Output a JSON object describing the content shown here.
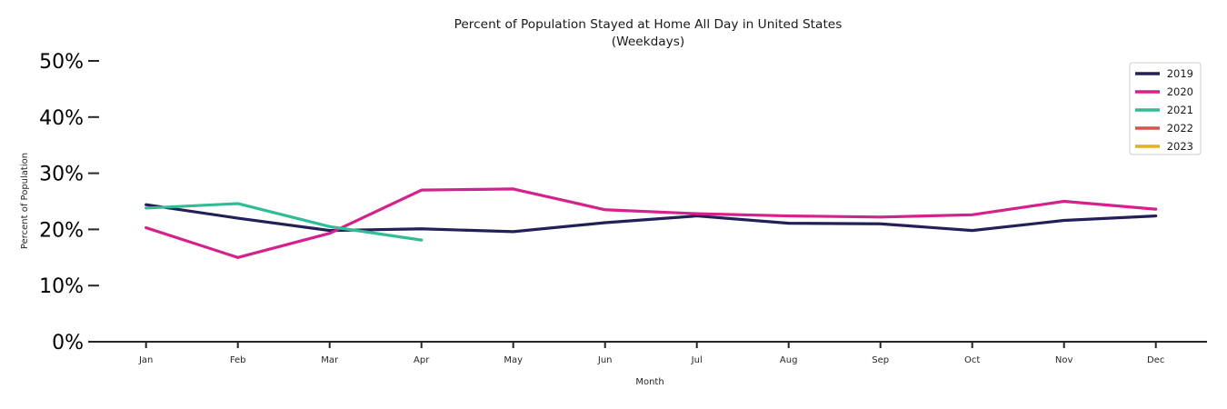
{
  "title": {
    "line1": "Percent of Population Stayed at Home All Day in United States",
    "line2": "(Weekdays)"
  },
  "chart_data": {
    "type": "line",
    "categories": [
      "Jan",
      "Feb",
      "Mar",
      "Apr",
      "May",
      "Jun",
      "Jul",
      "Aug",
      "Sep",
      "Oct",
      "Nov",
      "Dec"
    ],
    "series": [
      {
        "name": "2019",
        "color": "#232058",
        "values": [
          24.4,
          22.0,
          19.8,
          20.1,
          19.6,
          21.2,
          22.4,
          21.1,
          21.0,
          19.8,
          21.6,
          22.4
        ]
      },
      {
        "name": "2020",
        "color": "#d4218c",
        "values": [
          20.3,
          15.0,
          19.3,
          27.0,
          27.2,
          23.5,
          22.8,
          22.4,
          22.2,
          22.6,
          25.0,
          23.6
        ]
      },
      {
        "name": "2021",
        "color": "#2ebd96",
        "values": [
          23.8,
          24.6,
          20.5,
          18.1,
          null,
          null,
          null,
          null,
          null,
          null,
          null,
          null
        ]
      },
      {
        "name": "2022",
        "color": "#d4574e",
        "values": [
          null,
          null,
          null,
          null,
          null,
          null,
          null,
          null,
          null,
          null,
          null,
          null
        ]
      },
      {
        "name": "2023",
        "color": "#e0b31e",
        "values": [
          null,
          null,
          null,
          null,
          null,
          null,
          null,
          null,
          null,
          null,
          null,
          null
        ]
      }
    ],
    "xlabel": "Month",
    "ylabel": "Percent of Population",
    "y_ticks": [
      "0%",
      "10%",
      "20%",
      "30%",
      "40%",
      "50%"
    ],
    "y_tick_values": [
      0,
      10,
      20,
      30,
      40,
      50
    ],
    "ylim": [
      0,
      50
    ],
    "grid": false,
    "legend_position": "upper right",
    "axis_color": "#262626"
  }
}
